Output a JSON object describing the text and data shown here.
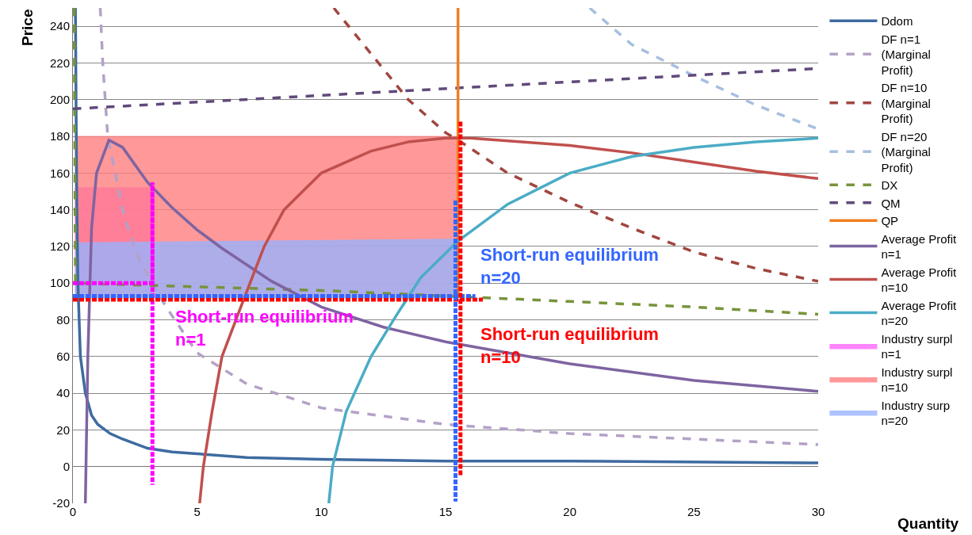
{
  "chart_data": {
    "type": "line",
    "xlabel": "Quantity",
    "ylabel": "Price",
    "xlim": [
      0,
      30
    ],
    "xticks": [
      0,
      5,
      10,
      15,
      20,
      25,
      30
    ],
    "ylim": [
      -20,
      250
    ],
    "yticks": [
      -20,
      0,
      20,
      40,
      60,
      80,
      100,
      120,
      140,
      160,
      180,
      200,
      220,
      240
    ],
    "grid": "y",
    "legend": "right",
    "marker": "none",
    "series": [
      {
        "name": "Ddom",
        "color": "#3e6ba0",
        "line_style": "solid",
        "x": [
          0.1,
          0.15,
          0.2,
          0.3,
          0.5,
          0.75,
          1,
          1.5,
          2,
          3,
          4,
          5,
          7,
          10,
          15,
          20,
          30
        ],
        "values": [
          250,
          150,
          100,
          60,
          40,
          28,
          23,
          18,
          15,
          10,
          8,
          7,
          5,
          4,
          3,
          3,
          2
        ]
      },
      {
        "name": "DF n=1\n(Marginal\nProfit)",
        "color": "#b3a2c7",
        "line_style": "dashed",
        "x": [
          1.1,
          1.2,
          1.4,
          2,
          2.5,
          3.2,
          4,
          4.5,
          5,
          7,
          10,
          15,
          20,
          25,
          30
        ],
        "values": [
          250,
          220,
          180,
          140,
          118,
          99,
          82,
          72,
          62,
          45,
          32,
          23,
          18,
          15,
          12
        ]
      },
      {
        "name": "DF n=10\n(Marginal\nProfit)",
        "color": "#a0463f",
        "line_style": "dashed",
        "x": [
          10.5,
          12.3,
          13.5,
          15,
          15.5,
          17.5,
          20,
          22.5,
          25,
          27.5,
          30
        ],
        "values": [
          250,
          220,
          200,
          182,
          178,
          160,
          144,
          130,
          117,
          108,
          101
        ]
      },
      {
        "name": "DF n=20\n(Marginal\nProfit)",
        "color": "#a6bfe0",
        "line_style": "dashed",
        "x": [
          20.8,
          22.5,
          25,
          27.5,
          30
        ],
        "values": [
          250,
          230,
          213,
          197,
          184
        ]
      },
      {
        "name": "DX",
        "color": "#77933c",
        "line_style": "dashed",
        "x": [
          0.05,
          0.1,
          5,
          10,
          15,
          20,
          25,
          30
        ],
        "values": [
          250,
          100,
          98,
          96,
          93,
          90,
          87,
          83
        ]
      },
      {
        "name": "QM",
        "color": "#604a7b",
        "line_style": "dashed",
        "x": [
          0,
          30
        ],
        "values": [
          195,
          217
        ]
      },
      {
        "name": "QP",
        "color": "#f07f1f",
        "line_style": "solid",
        "x": [
          15.5,
          15.5
        ],
        "values": [
          250,
          92
        ]
      },
      {
        "name": "Average Profit\nn=1",
        "color": "#7e64a1",
        "line_style": "solid",
        "x": [
          0.5,
          0.6,
          0.75,
          0.95,
          1.45,
          2,
          3,
          4,
          5,
          6,
          8,
          10,
          12.5,
          15,
          20,
          25,
          30
        ],
        "values": [
          -20,
          60,
          130,
          160,
          178,
          174,
          155,
          141,
          129,
          119,
          101,
          87,
          76,
          68,
          56,
          47,
          41
        ]
      },
      {
        "name": "Average Profit\nn=10",
        "color": "#c0504d",
        "line_style": "solid",
        "x": [
          5.1,
          5.25,
          5.6,
          6,
          6.9,
          7.7,
          8.5,
          10,
          12,
          13.5,
          15,
          16,
          20,
          22.5,
          25,
          27.5,
          30
        ],
        "values": [
          -20,
          0,
          30,
          60,
          92,
          120,
          140,
          160,
          172,
          177,
          179,
          179,
          175,
          171,
          166,
          161,
          157
        ]
      },
      {
        "name": "Average Profit\nn=20",
        "color": "#4bacc6",
        "line_style": "solid",
        "x": [
          10.3,
          10.45,
          11,
          12,
          13,
          14,
          15.5,
          17.5,
          20,
          22.5,
          25,
          27.5,
          30
        ],
        "values": [
          -20,
          0,
          30,
          60,
          82,
          103,
          123,
          143,
          160,
          169,
          174,
          177,
          179
        ]
      },
      {
        "name": "Industry surpl\nn=1",
        "type": "area",
        "color": "#ff66ff",
        "x": [
          0.1,
          0.1,
          3.2,
          3.2,
          0.1
        ],
        "values": [
          100,
          152,
          152,
          100,
          100
        ]
      },
      {
        "name": "Industry surpl\nn=10",
        "type": "area",
        "color": "#ff7f7f",
        "x": [
          0.1,
          0.1,
          15.5,
          15.5,
          0.1
        ],
        "values": [
          92,
          180,
          180,
          92,
          92
        ]
      },
      {
        "name": "Industry surp\nn=20",
        "type": "area",
        "color": "#99b3ff",
        "x": [
          0.1,
          0.1,
          15.5,
          15.5,
          0.1
        ],
        "values": [
          92,
          122,
          124,
          92,
          92
        ]
      },
      {
        "color": "#ff00ff",
        "line_style": "dotted",
        "x": [
          0,
          3.2,
          3.2,
          3.2
        ],
        "values": [
          100,
          100,
          155,
          -10
        ]
      },
      {
        "color": "#ff0000",
        "line_style": "dotted",
        "x": [
          0,
          16.5
        ],
        "values": [
          91,
          91
        ]
      },
      {
        "color": "#3366ff",
        "line_style": "dotted",
        "x": [
          0,
          16.2
        ],
        "values": [
          93,
          93
        ]
      },
      {
        "color": "#ff0000",
        "line_style": "dotted",
        "x": [
          15.6,
          15.6
        ],
        "values": [
          188,
          -5
        ]
      },
      {
        "color": "#3366ff",
        "line_style": "dotted",
        "x": [
          15.4,
          15.4
        ],
        "values": [
          145,
          -19
        ]
      }
    ],
    "annotations": [
      "Short-run equilibrium\nn=1",
      "Short-run equilibrium\nn=10",
      "Short-run equilibrium\nn=20"
    ]
  }
}
